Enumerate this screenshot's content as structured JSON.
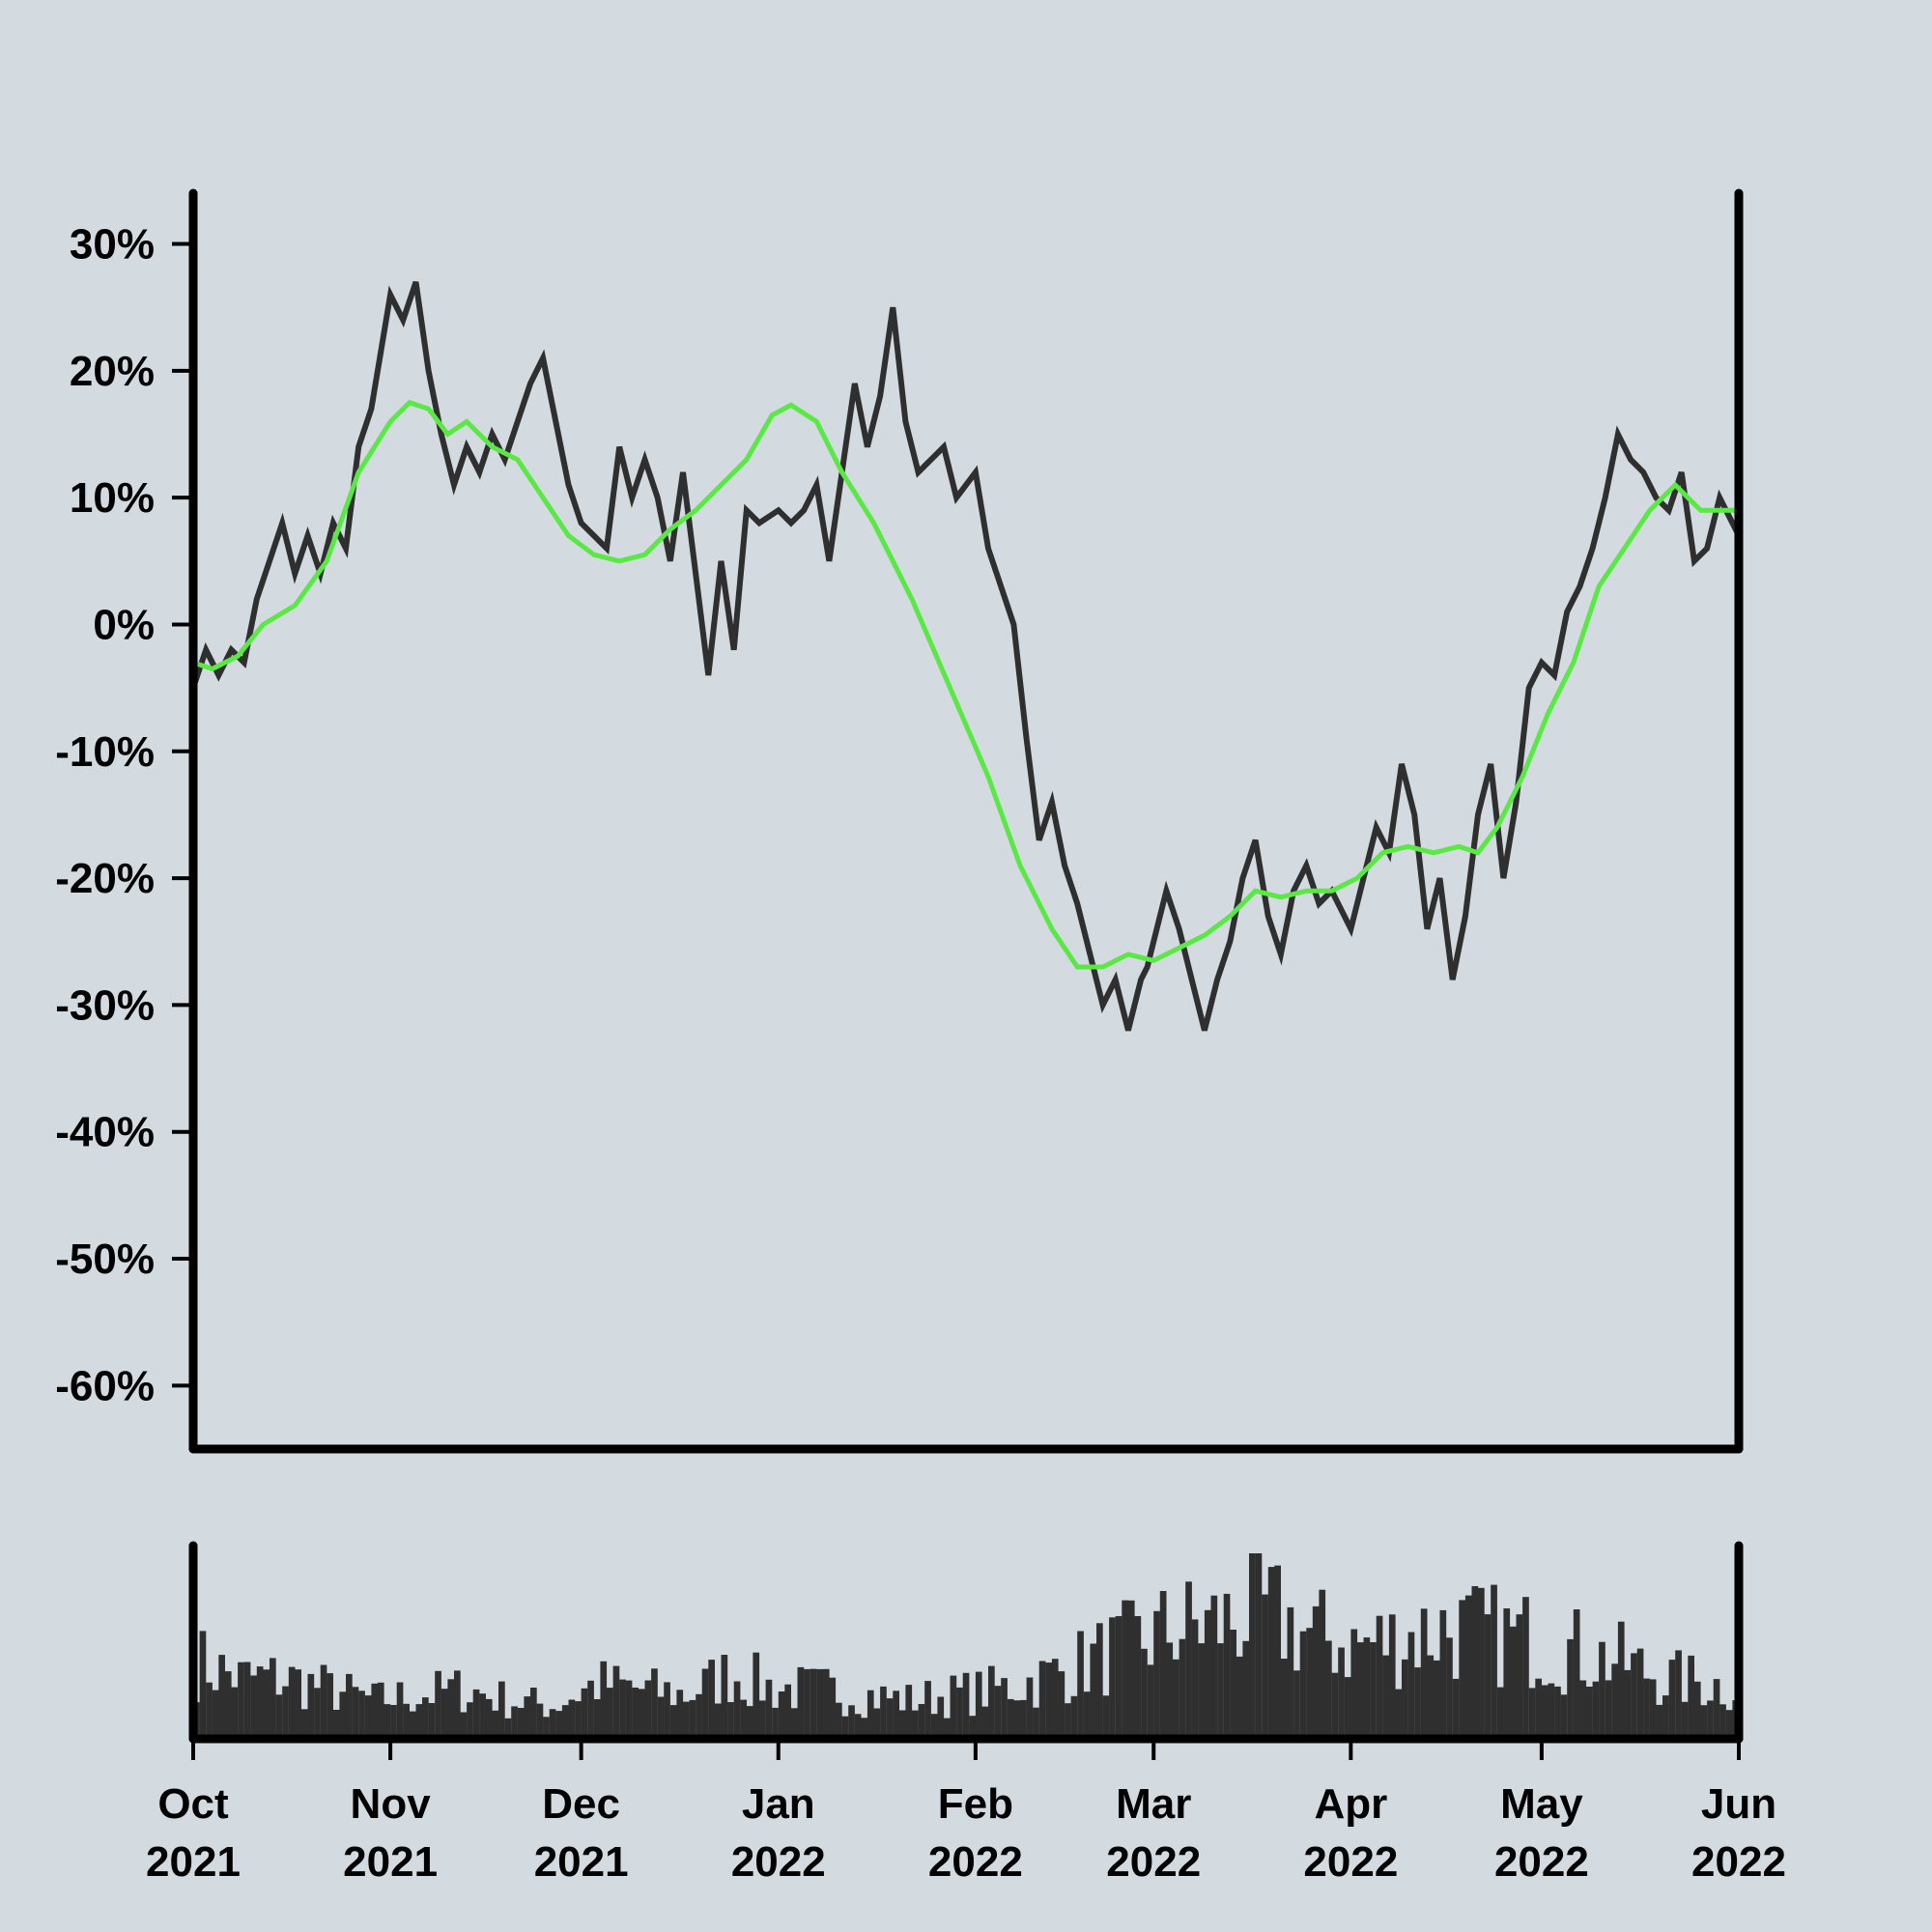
{
  "chart_data": {
    "type": "line",
    "title": "",
    "xlabel": "",
    "ylabel": "",
    "x_range": [
      "2021-10-01",
      "2022-06-01"
    ],
    "ylim": [
      -65,
      34
    ],
    "grid": false,
    "y_ticks": [
      {
        "value": 30,
        "label": "30%"
      },
      {
        "value": 20,
        "label": "20%"
      },
      {
        "value": 10,
        "label": "10%"
      },
      {
        "value": 0,
        "label": "0%"
      },
      {
        "value": -10,
        "label": "-10%"
      },
      {
        "value": -20,
        "label": "-20%"
      },
      {
        "value": -30,
        "label": "-30%"
      },
      {
        "value": -40,
        "label": "-40%"
      },
      {
        "value": -50,
        "label": "-50%"
      },
      {
        "value": -60,
        "label": "-60%"
      }
    ],
    "x_ticks": [
      {
        "date": "2021-10-01",
        "month": "Oct",
        "year": "2021"
      },
      {
        "date": "2021-11-01",
        "month": "Nov",
        "year": "2021"
      },
      {
        "date": "2021-12-01",
        "month": "Dec",
        "year": "2021"
      },
      {
        "date": "2022-01-01",
        "month": "Jan",
        "year": "2022"
      },
      {
        "date": "2022-02-01",
        "month": "Feb",
        "year": "2022"
      },
      {
        "date": "2022-03-01",
        "month": "Mar",
        "year": "2022"
      },
      {
        "date": "2022-04-01",
        "month": "Apr",
        "year": "2022"
      },
      {
        "date": "2022-05-01",
        "month": "May",
        "year": "2022"
      },
      {
        "date": "2022-06-01",
        "month": "Jun",
        "year": "2022"
      }
    ],
    "series": [
      {
        "color": "#2f2f2f",
        "points": [
          [
            "2021-10-01",
            -5
          ],
          [
            "2021-10-03",
            -2
          ],
          [
            "2021-10-05",
            -4
          ],
          [
            "2021-10-07",
            -2
          ],
          [
            "2021-10-09",
            -3
          ],
          [
            "2021-10-11",
            2
          ],
          [
            "2021-10-13",
            5
          ],
          [
            "2021-10-15",
            8
          ],
          [
            "2021-10-17",
            4
          ],
          [
            "2021-10-19",
            7
          ],
          [
            "2021-10-21",
            4
          ],
          [
            "2021-10-23",
            8
          ],
          [
            "2021-10-25",
            6
          ],
          [
            "2021-10-27",
            14
          ],
          [
            "2021-10-29",
            17
          ],
          [
            "2021-11-01",
            26
          ],
          [
            "2021-11-03",
            24
          ],
          [
            "2021-11-05",
            27
          ],
          [
            "2021-11-07",
            20
          ],
          [
            "2021-11-09",
            15
          ],
          [
            "2021-11-11",
            11
          ],
          [
            "2021-11-13",
            14
          ],
          [
            "2021-11-15",
            12
          ],
          [
            "2021-11-17",
            15
          ],
          [
            "2021-11-19",
            13
          ],
          [
            "2021-11-21",
            16
          ],
          [
            "2021-11-23",
            19
          ],
          [
            "2021-11-25",
            21
          ],
          [
            "2021-11-27",
            16
          ],
          [
            "2021-11-29",
            11
          ],
          [
            "2021-12-01",
            8
          ],
          [
            "2021-12-03",
            7
          ],
          [
            "2021-12-05",
            6
          ],
          [
            "2021-12-07",
            14
          ],
          [
            "2021-12-09",
            10
          ],
          [
            "2021-12-11",
            13
          ],
          [
            "2021-12-13",
            10
          ],
          [
            "2021-12-15",
            5
          ],
          [
            "2021-12-17",
            12
          ],
          [
            "2021-12-19",
            4
          ],
          [
            "2021-12-21",
            -4
          ],
          [
            "2021-12-23",
            5
          ],
          [
            "2021-12-25",
            -2
          ],
          [
            "2021-12-27",
            9
          ],
          [
            "2021-12-29",
            8
          ],
          [
            "2022-01-01",
            9
          ],
          [
            "2022-01-03",
            8
          ],
          [
            "2022-01-05",
            9
          ],
          [
            "2022-01-07",
            11
          ],
          [
            "2022-01-09",
            5
          ],
          [
            "2022-01-11",
            12
          ],
          [
            "2022-01-13",
            19
          ],
          [
            "2022-01-15",
            14
          ],
          [
            "2022-01-17",
            18
          ],
          [
            "2022-01-19",
            25
          ],
          [
            "2022-01-21",
            16
          ],
          [
            "2022-01-23",
            12
          ],
          [
            "2022-01-25",
            13
          ],
          [
            "2022-01-27",
            14
          ],
          [
            "2022-01-29",
            10
          ],
          [
            "2022-02-01",
            12
          ],
          [
            "2022-02-03",
            6
          ],
          [
            "2022-02-05",
            3
          ],
          [
            "2022-02-07",
            0
          ],
          [
            "2022-02-09",
            -9
          ],
          [
            "2022-02-11",
            -17
          ],
          [
            "2022-02-13",
            -14
          ],
          [
            "2022-02-15",
            -19
          ],
          [
            "2022-02-17",
            -22
          ],
          [
            "2022-02-19",
            -26
          ],
          [
            "2022-02-21",
            -30
          ],
          [
            "2022-02-23",
            -28
          ],
          [
            "2022-02-25",
            -32
          ],
          [
            "2022-02-27",
            -28
          ],
          [
            "2022-02-28",
            -27
          ],
          [
            "2022-03-01",
            -25
          ],
          [
            "2022-03-03",
            -21
          ],
          [
            "2022-03-05",
            -24
          ],
          [
            "2022-03-07",
            -28
          ],
          [
            "2022-03-09",
            -32
          ],
          [
            "2022-03-11",
            -28
          ],
          [
            "2022-03-13",
            -25
          ],
          [
            "2022-03-15",
            -20
          ],
          [
            "2022-03-17",
            -17
          ],
          [
            "2022-03-19",
            -23
          ],
          [
            "2022-03-21",
            -26
          ],
          [
            "2022-03-23",
            -21
          ],
          [
            "2022-03-25",
            -19
          ],
          [
            "2022-03-27",
            -22
          ],
          [
            "2022-03-29",
            -21
          ],
          [
            "2022-04-01",
            -24
          ],
          [
            "2022-04-03",
            -20
          ],
          [
            "2022-04-05",
            -16
          ],
          [
            "2022-04-07",
            -18
          ],
          [
            "2022-04-09",
            -11
          ],
          [
            "2022-04-11",
            -15
          ],
          [
            "2022-04-13",
            -24
          ],
          [
            "2022-04-15",
            -20
          ],
          [
            "2022-04-17",
            -28
          ],
          [
            "2022-04-19",
            -23
          ],
          [
            "2022-04-21",
            -15
          ],
          [
            "2022-04-23",
            -11
          ],
          [
            "2022-04-25",
            -20
          ],
          [
            "2022-04-27",
            -14
          ],
          [
            "2022-04-29",
            -5
          ],
          [
            "2022-05-01",
            -3
          ],
          [
            "2022-05-03",
            -4
          ],
          [
            "2022-05-05",
            1
          ],
          [
            "2022-05-07",
            3
          ],
          [
            "2022-05-09",
            6
          ],
          [
            "2022-05-11",
            10
          ],
          [
            "2022-05-13",
            15
          ],
          [
            "2022-05-15",
            13
          ],
          [
            "2022-05-17",
            12
          ],
          [
            "2022-05-19",
            10
          ],
          [
            "2022-05-21",
            9
          ],
          [
            "2022-05-23",
            12
          ],
          [
            "2022-05-25",
            5
          ],
          [
            "2022-05-27",
            6
          ],
          [
            "2022-05-29",
            10
          ],
          [
            "2022-06-01",
            7
          ]
        ]
      },
      {
        "color": "#5ae845",
        "points": [
          [
            "2021-10-01",
            -3
          ],
          [
            "2021-10-04",
            -3.5
          ],
          [
            "2021-10-08",
            -2.5
          ],
          [
            "2021-10-12",
            0
          ],
          [
            "2021-10-17",
            1.5
          ],
          [
            "2021-10-22",
            5
          ],
          [
            "2021-10-27",
            12
          ],
          [
            "2021-11-01",
            16
          ],
          [
            "2021-11-04",
            17.5
          ],
          [
            "2021-11-07",
            17
          ],
          [
            "2021-11-10",
            15
          ],
          [
            "2021-11-13",
            16
          ],
          [
            "2021-11-17",
            14
          ],
          [
            "2021-11-21",
            13
          ],
          [
            "2021-11-25",
            10
          ],
          [
            "2021-11-29",
            7
          ],
          [
            "2021-12-03",
            5.5
          ],
          [
            "2021-12-07",
            5
          ],
          [
            "2021-12-11",
            5.5
          ],
          [
            "2021-12-15",
            7.5
          ],
          [
            "2021-12-19",
            9
          ],
          [
            "2021-12-23",
            11
          ],
          [
            "2021-12-27",
            13
          ],
          [
            "2021-12-31",
            16.5
          ],
          [
            "2022-01-03",
            17.3
          ],
          [
            "2022-01-07",
            16
          ],
          [
            "2022-01-11",
            12
          ],
          [
            "2022-01-16",
            8
          ],
          [
            "2022-01-22",
            2
          ],
          [
            "2022-01-28",
            -5
          ],
          [
            "2022-02-03",
            -12
          ],
          [
            "2022-02-08",
            -19
          ],
          [
            "2022-02-13",
            -24
          ],
          [
            "2022-02-17",
            -27
          ],
          [
            "2022-02-21",
            -27
          ],
          [
            "2022-02-25",
            -26
          ],
          [
            "2022-03-01",
            -26.5
          ],
          [
            "2022-03-05",
            -25.5
          ],
          [
            "2022-03-09",
            -24.5
          ],
          [
            "2022-03-13",
            -23
          ],
          [
            "2022-03-17",
            -21
          ],
          [
            "2022-03-21",
            -21.5
          ],
          [
            "2022-03-25",
            -21
          ],
          [
            "2022-03-29",
            -21
          ],
          [
            "2022-04-02",
            -20
          ],
          [
            "2022-04-06",
            -18
          ],
          [
            "2022-04-10",
            -17.5
          ],
          [
            "2022-04-14",
            -18
          ],
          [
            "2022-04-18",
            -17.5
          ],
          [
            "2022-04-21",
            -18
          ],
          [
            "2022-04-24",
            -16
          ],
          [
            "2022-04-28",
            -12
          ],
          [
            "2022-05-02",
            -7
          ],
          [
            "2022-05-06",
            -3
          ],
          [
            "2022-05-10",
            3
          ],
          [
            "2022-05-14",
            6
          ],
          [
            "2022-05-18",
            9
          ],
          [
            "2022-05-22",
            11
          ],
          [
            "2022-05-26",
            9
          ],
          [
            "2022-06-01",
            9
          ]
        ]
      }
    ],
    "volume": [
      [
        "2021-10-01",
        70
      ],
      [
        "2021-10-08",
        55
      ],
      [
        "2021-10-15",
        55
      ],
      [
        "2021-10-22",
        45
      ],
      [
        "2021-10-29",
        35
      ],
      [
        "2021-11-05",
        40
      ],
      [
        "2021-11-12",
        45
      ],
      [
        "2021-11-19",
        35
      ],
      [
        "2021-11-26",
        30
      ],
      [
        "2021-12-03",
        50
      ],
      [
        "2021-12-10",
        45
      ],
      [
        "2021-12-17",
        40
      ],
      [
        "2021-12-24",
        60
      ],
      [
        "2021-12-31",
        45
      ],
      [
        "2022-01-07",
        45
      ],
      [
        "2022-01-14",
        40
      ],
      [
        "2022-01-21",
        35
      ],
      [
        "2022-01-28",
        40
      ],
      [
        "2022-02-04",
        45
      ],
      [
        "2022-02-11",
        55
      ],
      [
        "2022-02-18",
        70
      ],
      [
        "2022-02-25",
        85
      ],
      [
        "2022-03-04",
        100
      ],
      [
        "2022-03-11",
        105
      ],
      [
        "2022-03-18",
        115
      ],
      [
        "2022-03-25",
        95
      ],
      [
        "2022-04-01",
        85
      ],
      [
        "2022-04-08",
        90
      ],
      [
        "2022-04-15",
        100
      ],
      [
        "2022-04-22",
        95
      ],
      [
        "2022-04-29",
        90
      ],
      [
        "2022-05-06",
        80
      ],
      [
        "2022-05-13",
        70
      ],
      [
        "2022-05-20",
        55
      ],
      [
        "2022-05-27",
        50
      ],
      [
        "2022-06-01",
        45
      ]
    ]
  }
}
